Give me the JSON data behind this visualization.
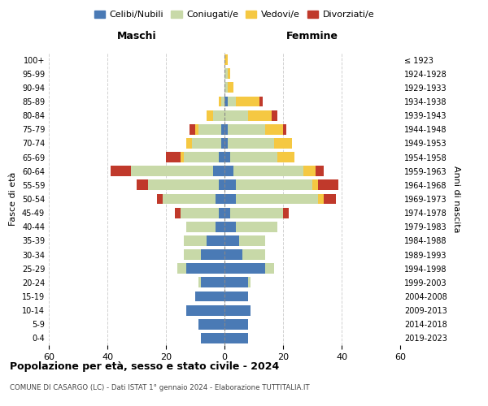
{
  "age_groups": [
    "0-4",
    "5-9",
    "10-14",
    "15-19",
    "20-24",
    "25-29",
    "30-34",
    "35-39",
    "40-44",
    "45-49",
    "50-54",
    "55-59",
    "60-64",
    "65-69",
    "70-74",
    "75-79",
    "80-84",
    "85-89",
    "90-94",
    "95-99",
    "100+"
  ],
  "birth_years": [
    "2019-2023",
    "2014-2018",
    "2009-2013",
    "2004-2008",
    "1999-2003",
    "1994-1998",
    "1989-1993",
    "1984-1988",
    "1979-1983",
    "1974-1978",
    "1969-1973",
    "1964-1968",
    "1959-1963",
    "1954-1958",
    "1949-1953",
    "1944-1948",
    "1939-1943",
    "1934-1938",
    "1929-1933",
    "1924-1928",
    "≤ 1923"
  ],
  "colors": {
    "celibi": "#4a7ab5",
    "coniugati": "#c8d9a8",
    "vedovi": "#f5c842",
    "divorziati": "#c0392b"
  },
  "maschi": {
    "celibi": [
      8,
      9,
      13,
      10,
      8,
      13,
      8,
      6,
      3,
      2,
      3,
      2,
      4,
      2,
      1,
      1,
      0,
      0,
      0,
      0,
      0
    ],
    "coniugati": [
      0,
      0,
      0,
      0,
      1,
      3,
      6,
      8,
      10,
      13,
      18,
      24,
      28,
      12,
      10,
      8,
      4,
      1,
      0,
      0,
      0
    ],
    "vedovi": [
      0,
      0,
      0,
      0,
      0,
      0,
      0,
      0,
      0,
      0,
      0,
      0,
      0,
      1,
      2,
      1,
      2,
      1,
      0,
      0,
      0
    ],
    "divorziati": [
      0,
      0,
      0,
      0,
      0,
      0,
      0,
      0,
      0,
      2,
      2,
      4,
      7,
      5,
      0,
      2,
      0,
      0,
      0,
      0,
      0
    ]
  },
  "femmine": {
    "celibi": [
      8,
      8,
      9,
      8,
      8,
      14,
      6,
      5,
      4,
      2,
      4,
      4,
      3,
      2,
      1,
      1,
      0,
      1,
      0,
      0,
      0
    ],
    "coniugati": [
      0,
      0,
      0,
      0,
      1,
      3,
      8,
      9,
      14,
      18,
      28,
      26,
      24,
      16,
      16,
      13,
      8,
      3,
      1,
      1,
      0
    ],
    "vedovi": [
      0,
      0,
      0,
      0,
      0,
      0,
      0,
      0,
      0,
      0,
      2,
      2,
      4,
      6,
      6,
      6,
      8,
      8,
      2,
      1,
      1
    ],
    "divorziati": [
      0,
      0,
      0,
      0,
      0,
      0,
      0,
      0,
      0,
      2,
      4,
      7,
      3,
      0,
      0,
      1,
      2,
      1,
      0,
      0,
      0
    ]
  },
  "xlim": 60,
  "title": "Popolazione per età, sesso e stato civile - 2024",
  "subtitle": "COMUNE DI CASARGO (LC) - Dati ISTAT 1° gennaio 2024 - Elaborazione TUTTITALIA.IT",
  "ylabel_left": "Fasce di età",
  "ylabel_right": "Anni di nascita",
  "xlabel_left": "Maschi",
  "xlabel_right": "Femmine",
  "legend_labels": [
    "Celibi/Nubili",
    "Coniugati/e",
    "Vedovi/e",
    "Divorziati/e"
  ],
  "background_color": "#ffffff",
  "grid_color": "#cccccc"
}
